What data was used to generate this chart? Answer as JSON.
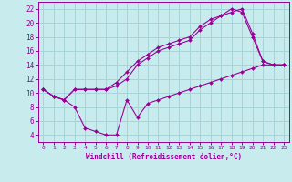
{
  "xlabel": "Windchill (Refroidissement éolien,°C)",
  "bg_color": "#c8ecee",
  "grid_color": "#a8d4d8",
  "line_color": "#990099",
  "xlim": [
    -0.5,
    23.5
  ],
  "ylim": [
    3.0,
    23.0
  ],
  "xticks": [
    0,
    1,
    2,
    3,
    4,
    5,
    6,
    7,
    8,
    9,
    10,
    11,
    12,
    13,
    14,
    15,
    16,
    17,
    18,
    19,
    20,
    21,
    22,
    23
  ],
  "yticks": [
    4,
    6,
    8,
    10,
    12,
    14,
    16,
    18,
    20,
    22
  ],
  "series": [
    {
      "x": [
        0,
        1,
        2,
        3,
        4,
        5,
        6,
        7,
        8,
        9,
        10,
        11,
        12,
        13,
        14,
        15,
        16,
        17,
        18,
        19,
        20,
        21,
        22,
        23
      ],
      "y": [
        10.5,
        9.5,
        9.0,
        10.5,
        10.5,
        10.5,
        10.5,
        11.5,
        13.0,
        14.5,
        15.5,
        16.5,
        17.0,
        17.5,
        18.0,
        19.5,
        20.5,
        21.0,
        22.0,
        21.5,
        18.0,
        14.5,
        14.0,
        14.0
      ]
    },
    {
      "x": [
        0,
        1,
        2,
        3,
        4,
        5,
        6,
        7,
        8,
        9,
        10,
        11,
        12,
        13,
        14,
        15,
        16,
        17,
        18,
        19,
        20,
        21,
        22,
        23
      ],
      "y": [
        10.5,
        9.5,
        9.0,
        10.5,
        10.5,
        10.5,
        10.5,
        11.0,
        12.0,
        14.0,
        15.0,
        16.0,
        16.5,
        17.0,
        17.5,
        19.0,
        20.0,
        21.0,
        21.5,
        22.0,
        18.5,
        14.5,
        14.0,
        14.0
      ]
    },
    {
      "x": [
        0,
        1,
        2,
        3,
        4,
        5,
        6,
        7,
        8,
        9,
        10,
        11,
        12,
        13,
        14,
        15,
        16,
        17,
        18,
        19,
        20,
        21,
        22,
        23
      ],
      "y": [
        10.5,
        9.5,
        9.0,
        8.0,
        5.0,
        4.5,
        4.0,
        4.0,
        9.0,
        6.5,
        8.5,
        9.0,
        9.5,
        10.0,
        10.5,
        11.0,
        11.5,
        12.0,
        12.5,
        13.0,
        13.5,
        14.0,
        14.0,
        14.0
      ]
    }
  ]
}
